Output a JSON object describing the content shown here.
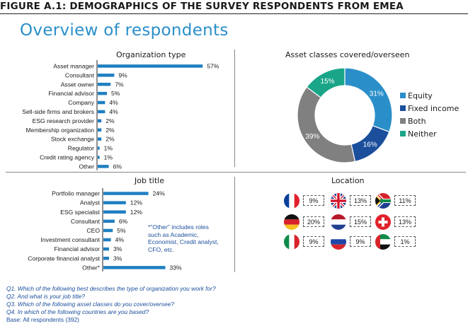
{
  "figure_title": "FIGURE A.1:  DEMOGRAPHICS OF THE SURVEY RESPONDENTS FROM EMEA",
  "overview_title": "Overview of respondents",
  "colors": {
    "accent": "#2a8fc9",
    "bar": "#1f7fc1",
    "equity": "#2a8fc9",
    "fixed_income": "#1b4f9c",
    "both": "#808080",
    "neither": "#1aa588",
    "note_text": "#1b4f9c"
  },
  "chart_data": [
    {
      "type": "bar",
      "orientation": "horizontal",
      "title": "Organization type",
      "categories": [
        "Asset manager",
        "Consultant",
        "Asset owner",
        "Financial advisor",
        "Company",
        "Sell-side firms and brokers",
        "ESG research provider",
        "Membership organization",
        "Stock exchange",
        "Regulator",
        "Credit rating agency",
        "Other"
      ],
      "values": [
        57,
        9,
        7,
        5,
        4,
        4,
        2,
        2,
        2,
        1,
        1,
        6
      ],
      "value_labels": [
        "57%",
        "9%",
        "7%",
        "5%",
        "4%",
        "4%",
        "2%",
        "2%",
        "2%",
        "1%",
        "1%",
        "6%"
      ],
      "xlim": [
        0,
        60
      ]
    },
    {
      "type": "pie",
      "donut": true,
      "title": "Asset classes covered/overseen",
      "categories": [
        "Equity",
        "Fixed income",
        "Both",
        "Neither"
      ],
      "values": [
        31,
        16,
        39,
        15
      ],
      "value_labels": [
        "31%",
        "16%",
        "39%",
        "15%"
      ],
      "legend_position": "right"
    },
    {
      "type": "bar",
      "orientation": "horizontal",
      "title": "Job title",
      "categories": [
        "Portfolio manager",
        "Analyst",
        "ESG specialist",
        "Consultant",
        "CEO",
        "Investment consultant",
        "Financial advisor",
        "Corporate financial analyst",
        "Other*"
      ],
      "values": [
        24,
        12,
        12,
        6,
        5,
        4,
        3,
        3,
        33
      ],
      "value_labels": [
        "24%",
        "12%",
        "12%",
        "6%",
        "5%",
        "4%",
        "3%",
        "3%",
        "33%"
      ],
      "xlim": [
        0,
        60
      ],
      "annotation": "*\"Other\" includes roles such as Academic, Economist, Credit analyst, CFO, etc."
    },
    {
      "type": "table",
      "title": "Location",
      "countries": [
        {
          "flag": "france-flag-icon",
          "value": "9%"
        },
        {
          "flag": "uk-flag-icon",
          "value": "13%"
        },
        {
          "flag": "south-africa-flag-icon",
          "value": "11%"
        },
        {
          "flag": "germany-flag-icon",
          "value": "20%"
        },
        {
          "flag": "netherlands-flag-icon",
          "value": "15%"
        },
        {
          "flag": "switzerland-flag-icon",
          "value": "13%"
        },
        {
          "flag": "italy-flag-icon",
          "value": "9%"
        },
        {
          "flag": "russia-flag-icon",
          "value": "9%"
        },
        {
          "flag": "uae-flag-icon",
          "value": "1%"
        }
      ]
    }
  ],
  "questions": [
    "Q1.   Which of the following best describes the type of organization you work for?",
    "Q2.   And what is your job title?",
    "Q3.   Which of the following asset classes do you cover/oversee?",
    "Q4.   In which of the following countries are you based?"
  ],
  "base": "Base: All respondents (392)"
}
